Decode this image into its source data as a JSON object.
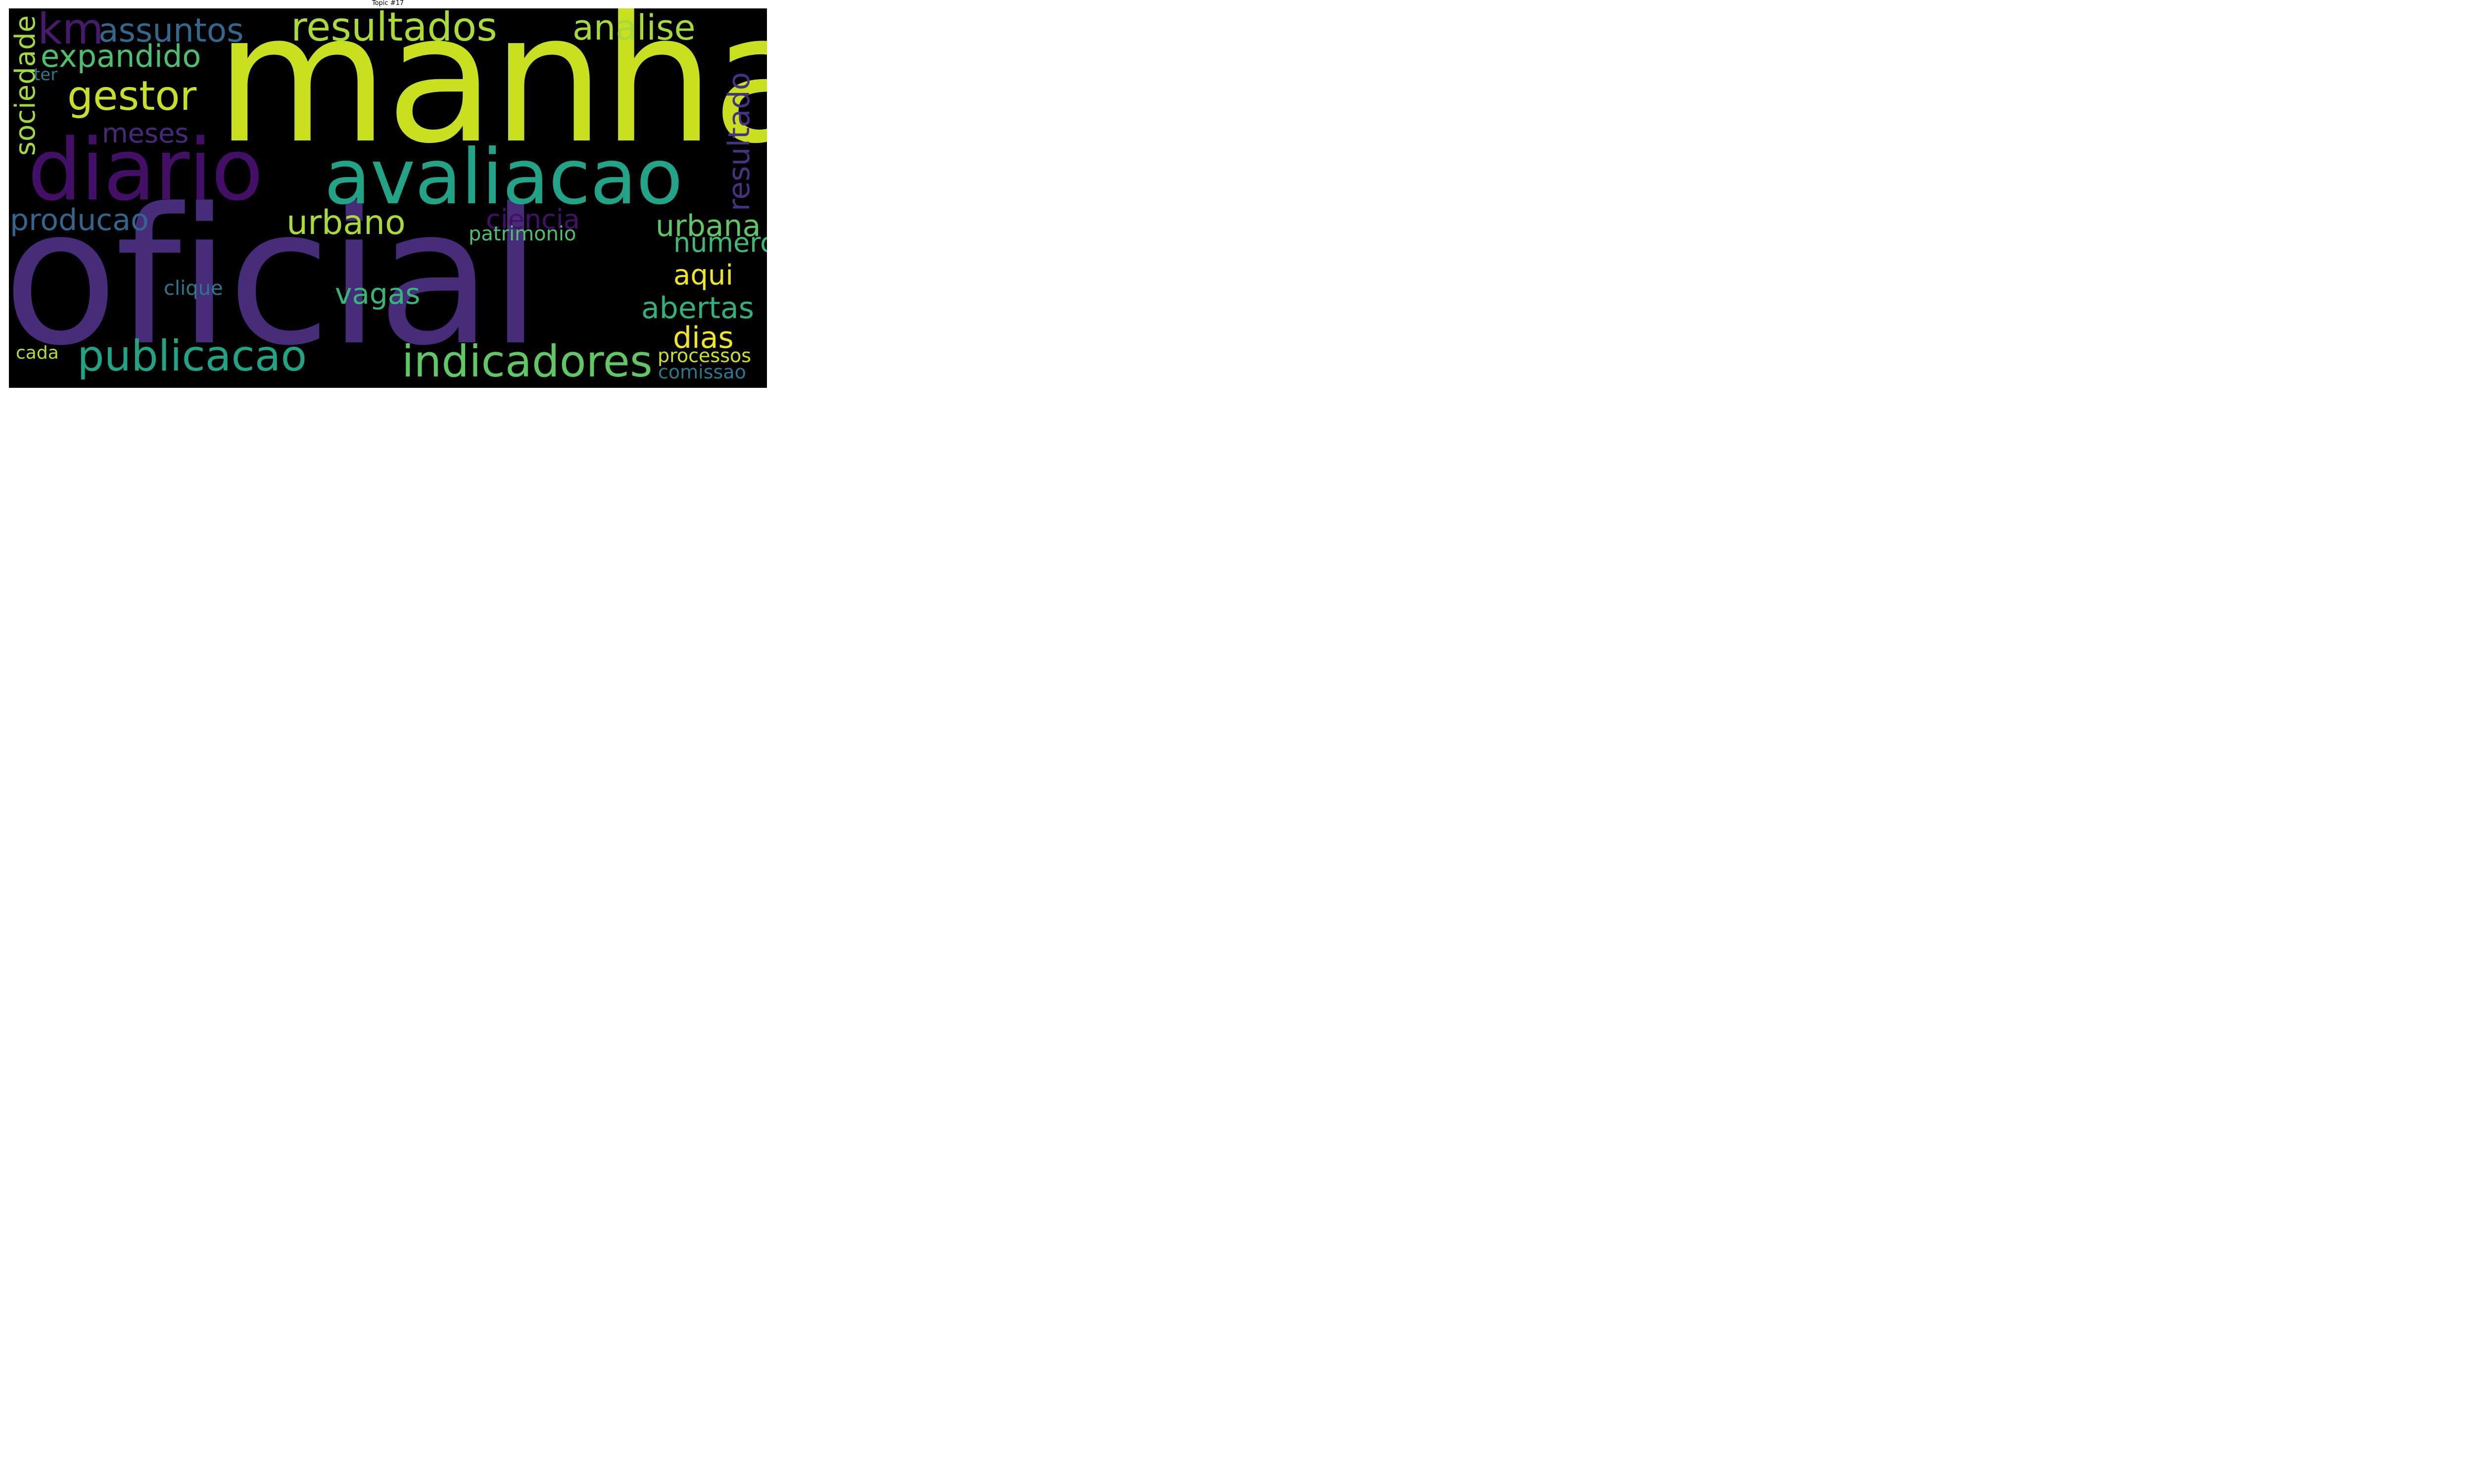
{
  "title": "Topic #17",
  "words": [
    {
      "text": "manha",
      "color": "#c8e020",
      "orientation": "horizontal"
    },
    {
      "text": "oficial",
      "color": "#472c7a",
      "orientation": "horizontal"
    },
    {
      "text": "diario",
      "color": "#440f66",
      "orientation": "horizontal"
    },
    {
      "text": "avaliacao",
      "color": "#20a386",
      "orientation": "horizontal"
    },
    {
      "text": "resultados",
      "color": "#aadc32",
      "orientation": "horizontal"
    },
    {
      "text": "km",
      "color": "#481a6c",
      "orientation": "horizontal"
    },
    {
      "text": "assuntos",
      "color": "#31688e",
      "orientation": "horizontal"
    },
    {
      "text": "analise",
      "color": "#a5db36",
      "orientation": "horizontal"
    },
    {
      "text": "expandido",
      "color": "#4ac16d",
      "orientation": "horizontal"
    },
    {
      "text": "gestor",
      "color": "#c8e020",
      "orientation": "horizontal"
    },
    {
      "text": "ter",
      "color": "#2a788e",
      "orientation": "horizontal"
    },
    {
      "text": "sociedade",
      "color": "#a2da37",
      "orientation": "vertical"
    },
    {
      "text": "meses",
      "color": "#482878",
      "orientation": "horizontal"
    },
    {
      "text": "resultado",
      "color": "#46337f",
      "orientation": "vertical"
    },
    {
      "text": "producao",
      "color": "#31668e",
      "orientation": "horizontal"
    },
    {
      "text": "urbano",
      "color": "#a8db34",
      "orientation": "horizontal"
    },
    {
      "text": "ciencia",
      "color": "#440f66",
      "orientation": "horizontal"
    },
    {
      "text": "urbana",
      "color": "#5ec962",
      "orientation": "horizontal"
    },
    {
      "text": "patrimonio",
      "color": "#4ac16d",
      "orientation": "horizontal"
    },
    {
      "text": "numero",
      "color": "#3bbb75",
      "orientation": "horizontal"
    },
    {
      "text": "aqui",
      "color": "#f1e51d",
      "orientation": "horizontal"
    },
    {
      "text": "clique",
      "color": "#2a788e",
      "orientation": "horizontal"
    },
    {
      "text": "vagas",
      "color": "#35b779",
      "orientation": "horizontal"
    },
    {
      "text": "abertas",
      "color": "#2eb37c",
      "orientation": "horizontal"
    },
    {
      "text": "dias",
      "color": "#f1e51d",
      "orientation": "horizontal"
    },
    {
      "text": "publicacao",
      "color": "#20a486",
      "orientation": "horizontal"
    },
    {
      "text": "indicadores",
      "color": "#5ec962",
      "orientation": "horizontal"
    },
    {
      "text": "cada",
      "color": "#b5de2b",
      "orientation": "horizontal"
    },
    {
      "text": "processos",
      "color": "#d0e11c",
      "orientation": "horizontal"
    },
    {
      "text": "comissao",
      "color": "#2a788e",
      "orientation": "horizontal"
    }
  ]
}
